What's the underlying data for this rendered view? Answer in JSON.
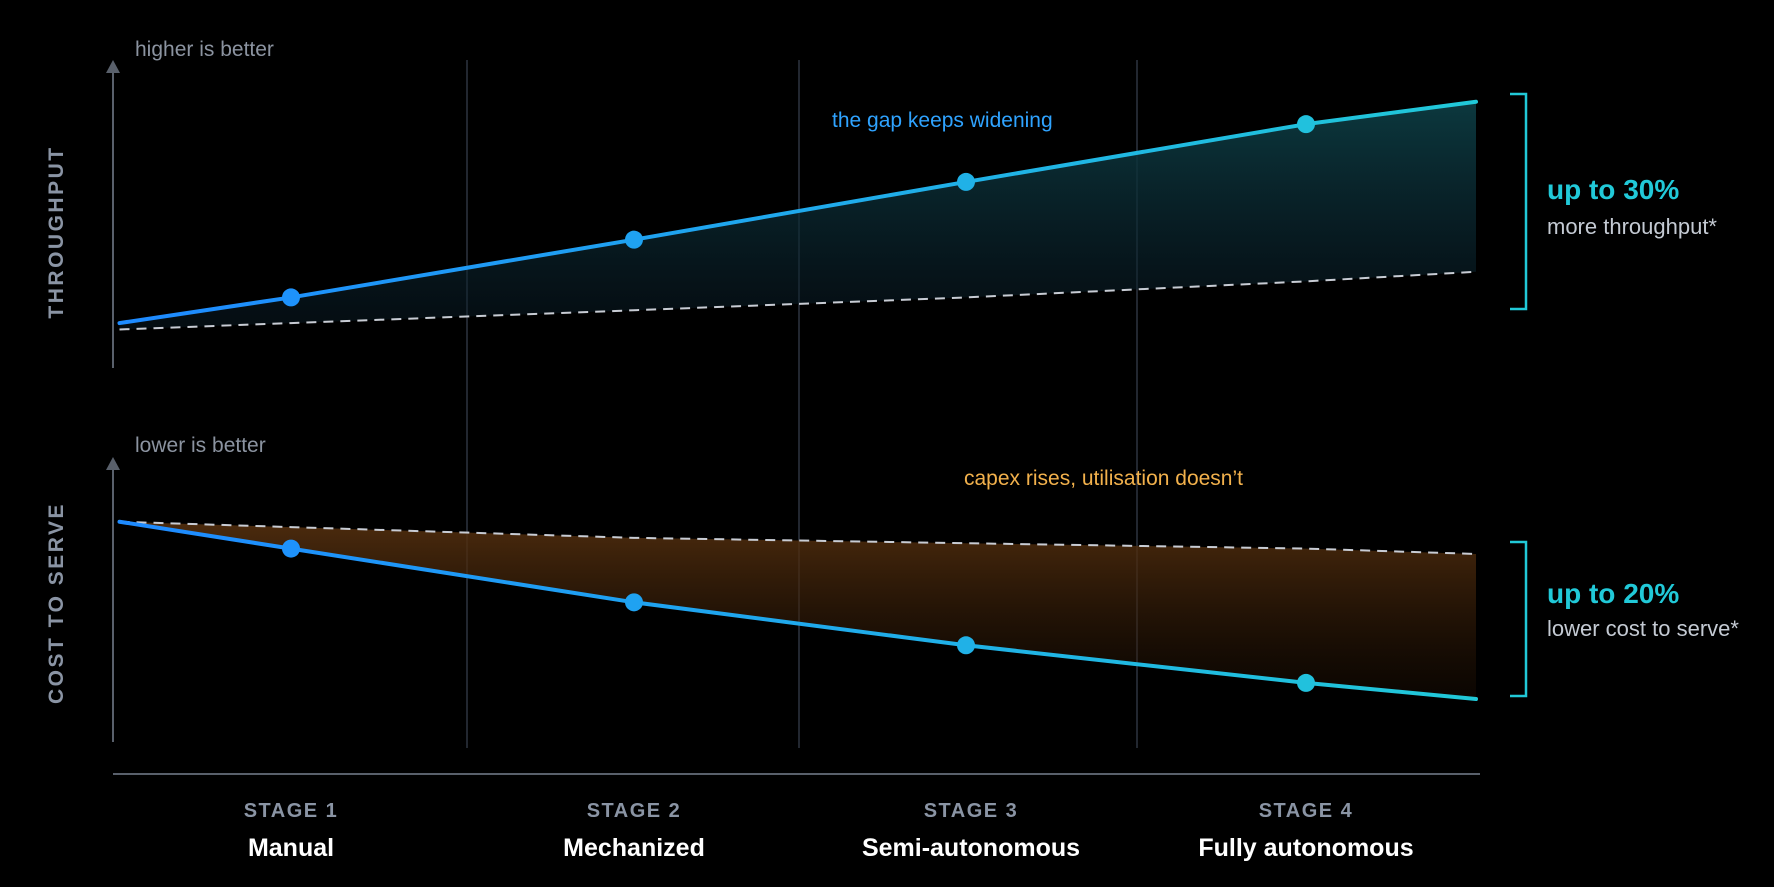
{
  "chart_data": [
    {
      "type": "line",
      "panel": "top",
      "ylabel": "THROUGHPUT",
      "direction_hint": "higher is better",
      "categories": [
        "Manual",
        "Mechanized",
        "Semi-autonomous",
        "Fully autonomous"
      ],
      "x": [
        0.5,
        1.0,
        2.0,
        3.0,
        4.0,
        4.5
      ],
      "series": [
        {
          "values": [
            100,
            108,
            126,
            144,
            162,
            169
          ],
          "color": "#1e8bff",
          "style": "solid",
          "markers": [
            1.0,
            2.0,
            3.0,
            4.0
          ]
        },
        {
          "values": [
            98,
            100,
            104,
            108,
            113,
            116
          ],
          "color": "#c8ccd4",
          "style": "dashed"
        }
      ],
      "ylim": [
        86,
        182
      ],
      "annotation": "the gap keeps widening",
      "callout": {
        "value": "up to 30%",
        "text": "more throughput*"
      },
      "grid": false
    },
    {
      "type": "line",
      "panel": "bottom",
      "ylabel": "COST TO SERVE",
      "direction_hint": "lower is better",
      "categories": [
        "Manual",
        "Mechanized",
        "Semi-autonomous",
        "Fully autonomous"
      ],
      "x": [
        0.5,
        1.0,
        2.0,
        3.0,
        4.0,
        4.5
      ],
      "series": [
        {
          "values": [
            100,
            95,
            85,
            77,
            70,
            67
          ],
          "color": "#1e8bff",
          "style": "solid",
          "markers": [
            1.0,
            2.0,
            3.0,
            4.0
          ]
        },
        {
          "values": [
            100,
            99,
            97,
            96,
            95,
            94
          ],
          "color": "#c8ccd4",
          "style": "dashed"
        }
      ],
      "ylim": [
        59,
        110
      ],
      "annotation": "capex rises, utilisation doesn’t",
      "callout": {
        "value": "up to 20%",
        "text": "lower cost to serve*"
      },
      "grid": false
    }
  ],
  "xaxis": {
    "stages": [
      {
        "label": "STAGE 1",
        "name": "Manual"
      },
      {
        "label": "STAGE 2",
        "name": "Mechanized"
      },
      {
        "label": "STAGE 3",
        "name": "Semi-autonomous"
      },
      {
        "label": "STAGE 4",
        "name": "Fully autonomous"
      }
    ]
  },
  "colors": {
    "background": "#000000",
    "line_start": "#1e8bff",
    "line_end": "#21c9d8",
    "gain_fill": "#0c3a40",
    "cost_fill": "#5a3310",
    "dashed": "#c8ccd4",
    "bracket": "#21c9d8",
    "note_blue": "#2fa3ff",
    "note_orange": "#f2b14c"
  }
}
